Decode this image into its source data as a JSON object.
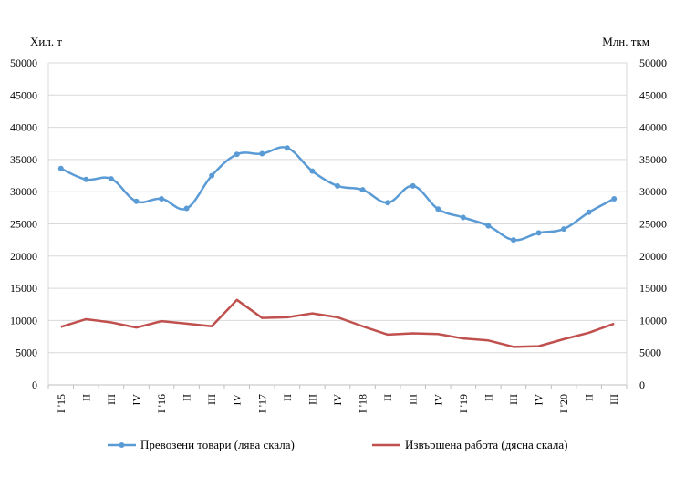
{
  "chart_data": {
    "type": "line",
    "left_unit": "Хил. т",
    "right_unit": "Млн. ткм",
    "categories": [
      "I '15",
      "II",
      "III",
      "IV",
      "I '16",
      "II",
      "III",
      "IV",
      "I '17",
      "II",
      "III",
      "IV",
      "I '18",
      "II",
      "III",
      "IV",
      "I '19",
      "II",
      "III",
      "IV",
      "I '20",
      "II",
      "III"
    ],
    "ylim": [
      0,
      50000
    ],
    "y2lim": [
      0,
      50000
    ],
    "yticks": [
      "0",
      "5000",
      "10000",
      "15000",
      "20000",
      "25000",
      "30000",
      "35000",
      "40000",
      "45000",
      "50000"
    ],
    "grid": true,
    "legend_position": "bottom",
    "series": [
      {
        "name": "Превозени  товари (лява скала)",
        "axis": "left",
        "color": "#5b9bd5",
        "markers": true,
        "values": [
          33600,
          31900,
          32000,
          28500,
          28900,
          27400,
          32500,
          35800,
          35900,
          36800,
          33200,
          30900,
          30300,
          28300,
          30900,
          27300,
          26000,
          24700,
          22500,
          23600,
          24200,
          26800,
          28900
        ]
      },
      {
        "name": "Извършена  работа (дясна скала)",
        "axis": "right",
        "color": "#c0504d",
        "markers": false,
        "values": [
          9000,
          10200,
          9700,
          8900,
          9900,
          9500,
          9100,
          13200,
          10400,
          10500,
          11100,
          10500,
          9100,
          7800,
          8000,
          7900,
          7200,
          6900,
          5900,
          6000,
          7100,
          8100,
          9500
        ]
      }
    ]
  }
}
